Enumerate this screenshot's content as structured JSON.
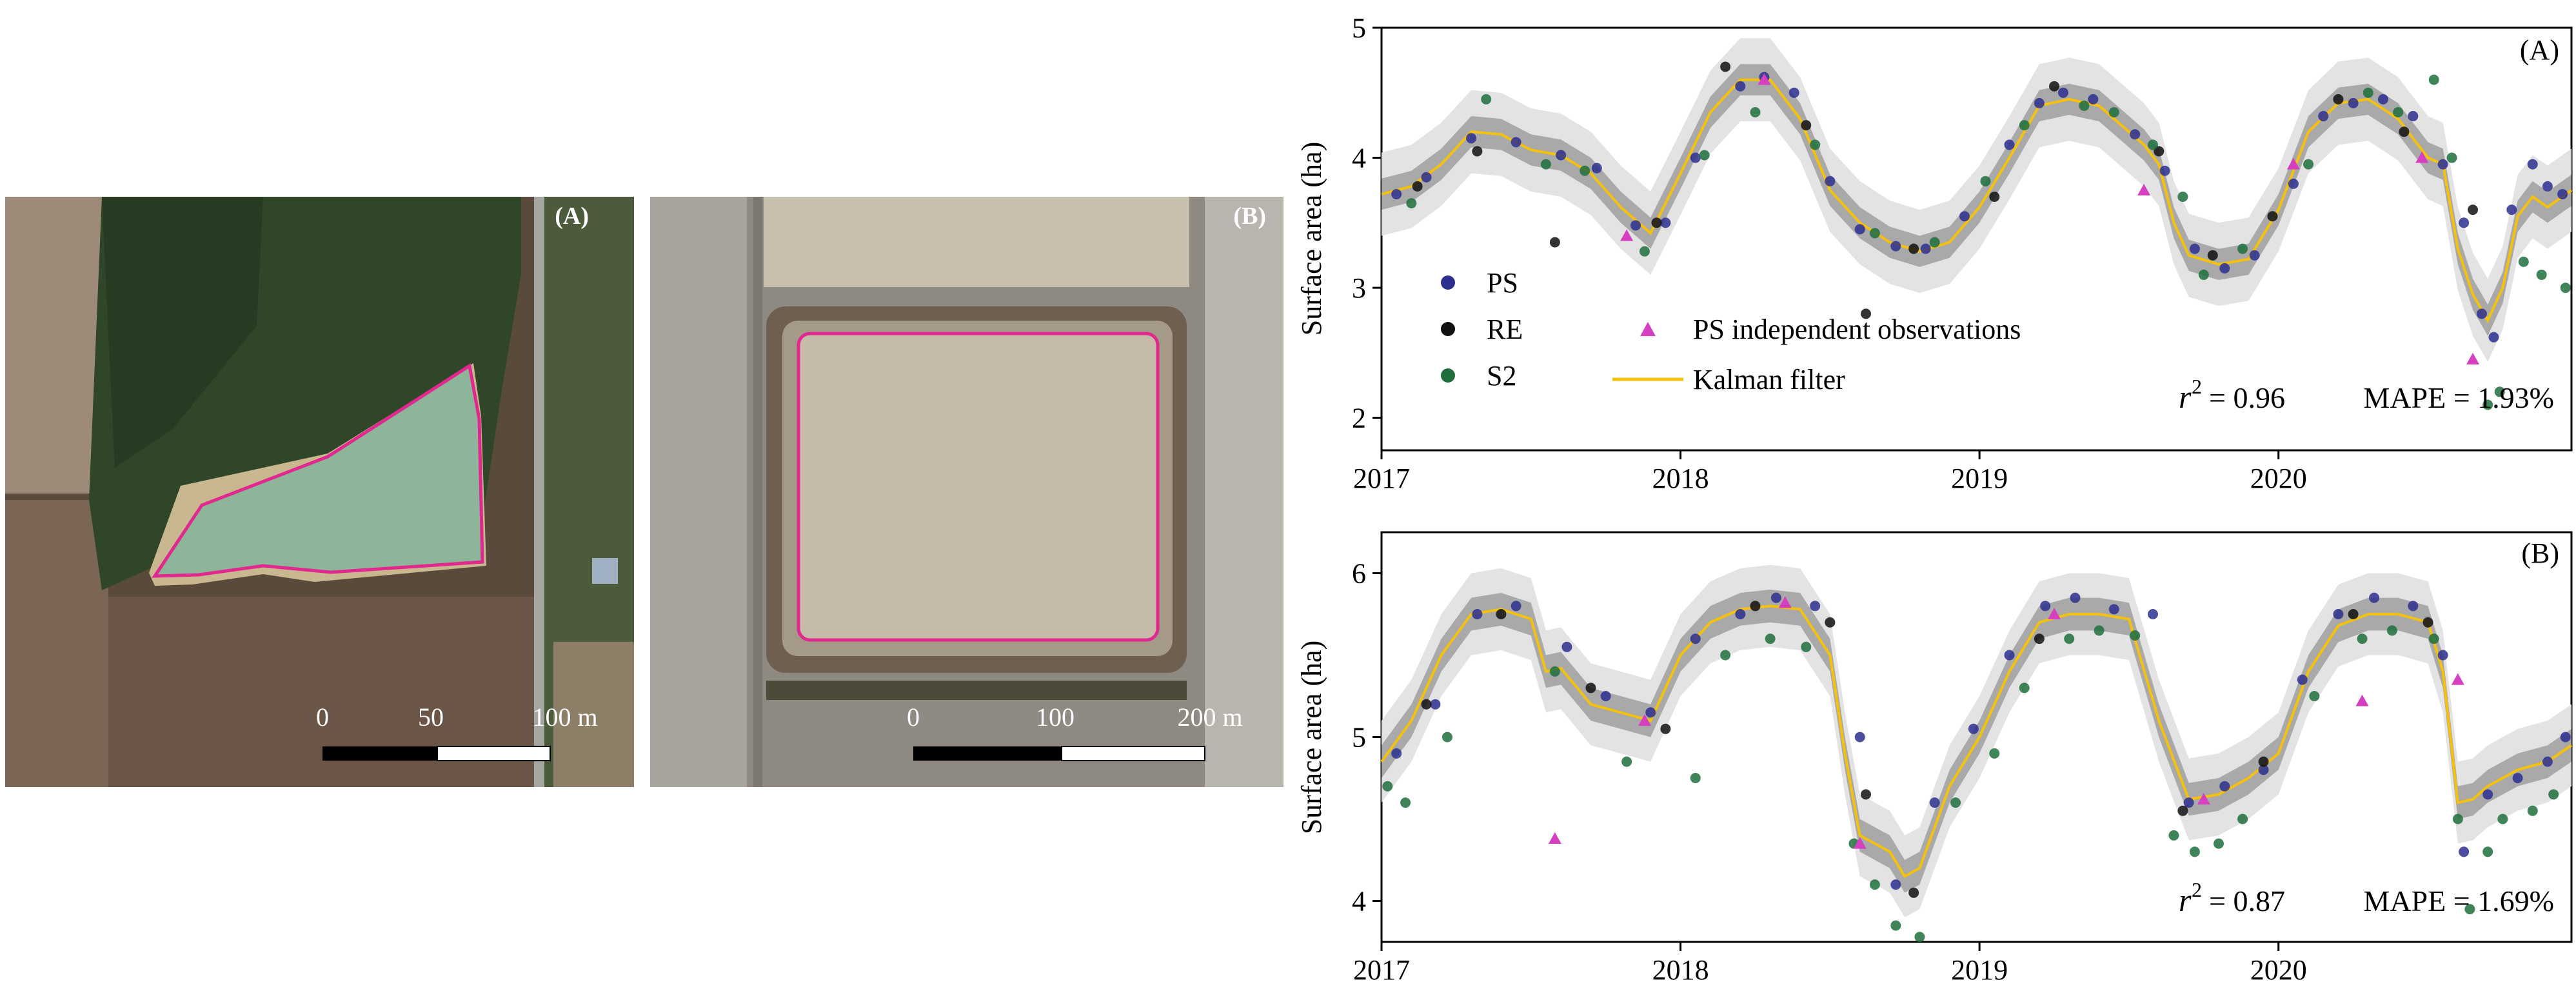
{
  "images": [
    {
      "panel_label": "(A)",
      "scale_ticks": [
        "0",
        "50",
        "100 m"
      ],
      "colors": {
        "field": "#6f5a48",
        "forest": "#2f4628",
        "water": "#8db59a",
        "outline": "#e0288f",
        "road": "#a6a6a0"
      }
    },
    {
      "panel_label": "(B)",
      "scale_ticks": [
        "0",
        "100",
        "200 m"
      ],
      "colors": {
        "field": "#8e8a82",
        "bank": "#7a6a58",
        "water": "#c6bba8",
        "outline": "#e0288f"
      }
    }
  ],
  "chart_data": [
    {
      "type": "line",
      "panel_label": "(A)",
      "xlabel": "",
      "ylabel": "Surface area (ha)",
      "xlim": [
        2017.0,
        2020.98
      ],
      "ylim": [
        1.75,
        5.0
      ],
      "xticks": [
        2017,
        2018,
        2019,
        2020
      ],
      "xtick_labels": [
        "2017",
        "2018",
        "2019",
        "2020"
      ],
      "yticks": [
        2,
        3,
        4,
        5
      ],
      "ytick_labels": [
        "2",
        "3",
        "4",
        "5"
      ],
      "grid": false,
      "legend_position": "lower-left",
      "annotation": {
        "r2": "= 0.96",
        "mape": "MAPE = 1.93%"
      },
      "kalman": {
        "name": "Kalman filter",
        "color": "#f4c20d",
        "x": [
          2017.0,
          2017.1,
          2017.2,
          2017.3,
          2017.4,
          2017.5,
          2017.6,
          2017.7,
          2017.8,
          2017.9,
          2018.0,
          2018.1,
          2018.2,
          2018.3,
          2018.4,
          2018.5,
          2018.6,
          2018.7,
          2018.8,
          2018.9,
          2019.0,
          2019.1,
          2019.2,
          2019.3,
          2019.4,
          2019.5,
          2019.55,
          2019.6,
          2019.65,
          2019.7,
          2019.8,
          2019.9,
          2020.0,
          2020.1,
          2020.2,
          2020.3,
          2020.4,
          2020.5,
          2020.55,
          2020.6,
          2020.65,
          2020.7,
          2020.75,
          2020.8,
          2020.85,
          2020.9,
          2020.98
        ],
        "y": [
          3.72,
          3.78,
          3.95,
          4.2,
          4.18,
          4.06,
          4.02,
          3.88,
          3.62,
          3.42,
          3.88,
          4.35,
          4.6,
          4.6,
          4.3,
          3.75,
          3.5,
          3.35,
          3.28,
          3.35,
          3.62,
          4.0,
          4.4,
          4.45,
          4.4,
          4.2,
          4.1,
          3.95,
          3.5,
          3.25,
          3.18,
          3.22,
          3.6,
          4.2,
          4.42,
          4.45,
          4.3,
          4.0,
          3.95,
          3.3,
          2.95,
          2.75,
          3.0,
          3.55,
          3.7,
          3.62,
          3.75
        ],
        "band_inner": 0.12,
        "band_outer": 0.32
      },
      "series": [
        {
          "name": "PS",
          "color": "#2d2f8e",
          "x": [
            2017.05,
            2017.15,
            2017.3,
            2017.45,
            2017.6,
            2017.72,
            2017.85,
            2017.95,
            2018.05,
            2018.2,
            2018.28,
            2018.38,
            2018.5,
            2018.6,
            2018.72,
            2018.82,
            2018.95,
            2019.1,
            2019.2,
            2019.28,
            2019.38,
            2019.52,
            2019.62,
            2019.72,
            2019.82,
            2019.92,
            2020.05,
            2020.15,
            2020.25,
            2020.35,
            2020.45,
            2020.55,
            2020.62,
            2020.68,
            2020.72,
            2020.78,
            2020.85,
            2020.9,
            2020.95
          ],
          "y": [
            3.72,
            3.85,
            4.15,
            4.12,
            4.02,
            3.92,
            3.48,
            3.5,
            4.0,
            4.55,
            4.62,
            4.5,
            3.82,
            3.45,
            3.32,
            3.3,
            3.55,
            4.1,
            4.42,
            4.5,
            4.45,
            4.18,
            3.9,
            3.3,
            3.15,
            3.25,
            3.8,
            4.32,
            4.42,
            4.45,
            4.32,
            3.95,
            3.5,
            2.8,
            2.62,
            3.6,
            3.95,
            3.78,
            3.72
          ]
        },
        {
          "name": "RE",
          "color": "#111111",
          "x": [
            2017.12,
            2017.32,
            2017.58,
            2017.92,
            2018.15,
            2018.42,
            2018.62,
            2018.78,
            2019.05,
            2019.25,
            2019.6,
            2019.78,
            2019.98,
            2020.2,
            2020.42,
            2020.65
          ],
          "y": [
            3.78,
            4.05,
            3.35,
            3.5,
            4.7,
            4.25,
            2.8,
            3.3,
            3.7,
            4.55,
            4.05,
            3.25,
            3.55,
            4.45,
            4.2,
            3.6
          ]
        },
        {
          "name": "S2",
          "color": "#1f6e3c",
          "x": [
            2017.1,
            2017.35,
            2017.55,
            2017.68,
            2017.88,
            2018.08,
            2018.25,
            2018.45,
            2018.65,
            2018.85,
            2019.02,
            2019.15,
            2019.35,
            2019.45,
            2019.58,
            2019.68,
            2019.75,
            2019.88,
            2020.1,
            2020.3,
            2020.4,
            2020.52,
            2020.58,
            2020.7,
            2020.74,
            2020.82,
            2020.88,
            2020.96
          ],
          "y": [
            3.65,
            4.45,
            3.95,
            3.9,
            3.28,
            4.02,
            4.35,
            4.1,
            3.42,
            3.35,
            3.82,
            4.25,
            4.4,
            4.35,
            4.1,
            3.7,
            3.1,
            3.3,
            3.95,
            4.5,
            4.35,
            4.6,
            4.0,
            2.1,
            2.2,
            3.2,
            3.1,
            3.0
          ]
        },
        {
          "name": "PS independent observations",
          "color": "#d63fbf",
          "marker": "triangle",
          "x": [
            2017.82,
            2018.28,
            2019.55,
            2020.05,
            2020.48,
            2020.65
          ],
          "y": [
            3.4,
            4.6,
            3.75,
            3.95,
            4.0,
            2.45
          ]
        }
      ]
    },
    {
      "type": "line",
      "panel_label": "(B)",
      "xlabel": "",
      "ylabel": "Surface area (ha)",
      "xlim": [
        2017.0,
        2020.98
      ],
      "ylim": [
        3.75,
        6.25
      ],
      "xticks": [
        2017,
        2018,
        2019,
        2020
      ],
      "xtick_labels": [
        "2017",
        "2018",
        "2019",
        "2020"
      ],
      "yticks": [
        4,
        5,
        6
      ],
      "ytick_labels": [
        "4",
        "5",
        "6"
      ],
      "grid": false,
      "annotation": {
        "r2": "= 0.87",
        "mape": "MAPE = 1.69%"
      },
      "kalman": {
        "name": "Kalman filter",
        "color": "#f4c20d",
        "x": [
          2017.0,
          2017.1,
          2017.2,
          2017.3,
          2017.4,
          2017.5,
          2017.55,
          2017.6,
          2017.7,
          2017.8,
          2017.9,
          2018.0,
          2018.1,
          2018.2,
          2018.3,
          2018.4,
          2018.5,
          2018.55,
          2018.6,
          2018.7,
          2018.75,
          2018.8,
          2018.9,
          2019.0,
          2019.1,
          2019.2,
          2019.3,
          2019.4,
          2019.5,
          2019.6,
          2019.7,
          2019.8,
          2019.9,
          2020.0,
          2020.1,
          2020.2,
          2020.3,
          2020.4,
          2020.5,
          2020.55,
          2020.6,
          2020.65,
          2020.7,
          2020.8,
          2020.9,
          2020.98
        ],
        "y": [
          4.85,
          5.1,
          5.5,
          5.75,
          5.78,
          5.72,
          5.4,
          5.42,
          5.2,
          5.15,
          5.1,
          5.5,
          5.7,
          5.78,
          5.8,
          5.78,
          5.5,
          4.9,
          4.4,
          4.3,
          4.15,
          4.2,
          4.7,
          5.0,
          5.4,
          5.7,
          5.75,
          5.75,
          5.72,
          5.1,
          4.62,
          4.65,
          4.75,
          4.9,
          5.4,
          5.68,
          5.75,
          5.75,
          5.7,
          5.4,
          4.6,
          4.62,
          4.7,
          4.8,
          4.85,
          4.95
        ],
        "band_inner": 0.1,
        "band_outer": 0.25
      },
      "series": [
        {
          "name": "PS",
          "color": "#2d2f8e",
          "x": [
            2017.05,
            2017.18,
            2017.32,
            2017.45,
            2017.62,
            2017.75,
            2017.9,
            2018.05,
            2018.2,
            2018.32,
            2018.45,
            2018.6,
            2018.72,
            2018.85,
            2018.98,
            2019.1,
            2019.22,
            2019.32,
            2019.45,
            2019.58,
            2019.7,
            2019.82,
            2019.95,
            2020.08,
            2020.2,
            2020.32,
            2020.45,
            2020.55,
            2020.62,
            2020.7,
            2020.8,
            2020.9,
            2020.96
          ],
          "y": [
            4.9,
            5.2,
            5.75,
            5.8,
            5.55,
            5.25,
            5.15,
            5.6,
            5.75,
            5.85,
            5.8,
            5.0,
            4.1,
            4.6,
            5.05,
            5.5,
            5.8,
            5.85,
            5.78,
            5.75,
            4.6,
            4.7,
            4.8,
            5.35,
            5.75,
            5.85,
            5.8,
            5.5,
            4.3,
            4.65,
            4.75,
            4.85,
            5.0
          ]
        },
        {
          "name": "RE",
          "color": "#111111",
          "x": [
            2017.15,
            2017.4,
            2017.7,
            2017.95,
            2018.25,
            2018.5,
            2018.62,
            2018.78,
            2019.2,
            2019.68,
            2019.95,
            2020.25,
            2020.5
          ],
          "y": [
            5.2,
            5.75,
            5.3,
            5.05,
            5.8,
            5.7,
            4.65,
            4.05,
            5.6,
            4.55,
            4.85,
            5.75,
            5.7
          ]
        },
        {
          "name": "S2",
          "color": "#1f6e3c",
          "x": [
            2017.02,
            2017.08,
            2017.22,
            2017.58,
            2017.82,
            2018.05,
            2018.15,
            2018.3,
            2018.42,
            2018.58,
            2018.65,
            2018.72,
            2018.8,
            2018.92,
            2019.05,
            2019.15,
            2019.3,
            2019.4,
            2019.52,
            2019.65,
            2019.72,
            2019.8,
            2019.88,
            2020.12,
            2020.28,
            2020.38,
            2020.52,
            2020.6,
            2020.64,
            2020.7,
            2020.75,
            2020.85,
            2020.92
          ],
          "y": [
            4.7,
            4.6,
            5.0,
            5.4,
            4.85,
            4.75,
            5.5,
            5.6,
            5.55,
            4.35,
            4.1,
            3.85,
            3.78,
            4.6,
            4.9,
            5.3,
            5.6,
            5.65,
            5.62,
            4.4,
            4.3,
            4.35,
            4.5,
            5.25,
            5.6,
            5.65,
            5.6,
            4.5,
            3.95,
            4.3,
            4.5,
            4.55,
            4.65
          ]
        },
        {
          "name": "PS independent observations",
          "color": "#d63fbf",
          "marker": "triangle",
          "x": [
            2017.58,
            2017.88,
            2018.35,
            2018.6,
            2019.25,
            2019.75,
            2020.28,
            2020.6
          ],
          "y": [
            4.38,
            5.1,
            5.82,
            4.35,
            5.75,
            4.62,
            5.22,
            5.35
          ]
        }
      ]
    }
  ]
}
